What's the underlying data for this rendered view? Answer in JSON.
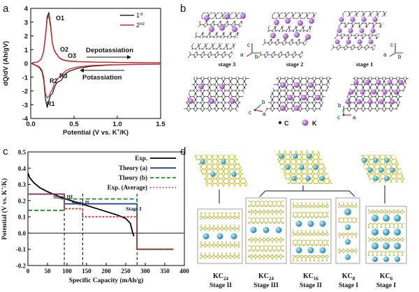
{
  "panels": {
    "a": "a",
    "b": "b",
    "c": "c",
    "d": "d"
  },
  "chart_data": [
    {
      "panel": "a",
      "type": "line",
      "xlabel": "Potential (V vs. K+/K)",
      "xlabel_parts": [
        "Potential (V vs. K",
        "+",
        "/K)"
      ],
      "ylabel": "dQ/dV (Ah/gV)",
      "xlim": [
        0.0,
        1.5
      ],
      "ylim": [
        -4,
        4
      ],
      "xticks": [
        0.0,
        0.5,
        1.0,
        1.5
      ],
      "xtick_labels": [
        "0.0",
        "0.5",
        "1.0",
        "1.5"
      ],
      "yticks": [
        -4,
        -3,
        -2,
        -1,
        0,
        1,
        2,
        3,
        4
      ],
      "ytick_labels": [
        "-4",
        "-3",
        "-2",
        "-1",
        "0",
        "1",
        "2",
        "3",
        "4"
      ],
      "legend": [
        {
          "label": "1",
          "sup": "st",
          "color": "#222222"
        },
        {
          "label": "2",
          "sup": "nd",
          "color": "#d62728"
        }
      ],
      "annotations": [
        "O1",
        "O2",
        "O3",
        "R1",
        "R2",
        "R3",
        "Depotassiation",
        "Potassiation"
      ],
      "series": [
        {
          "name": "1st",
          "color": "#222222",
          "x": [
            0.02,
            0.08,
            0.12,
            0.15,
            0.17,
            0.19,
            0.21,
            0.23,
            0.25,
            0.27,
            0.29,
            0.31,
            0.33,
            0.36,
            0.4,
            0.45,
            0.55,
            0.7,
            0.9,
            1.1,
            1.3,
            1.5
          ],
          "y": [
            0.05,
            0.1,
            0.3,
            0.9,
            2.0,
            3.4,
            3.7,
            2.8,
            1.5,
            1.0,
            0.75,
            0.6,
            0.42,
            0.3,
            0.22,
            0.17,
            0.13,
            0.1,
            0.08,
            0.06,
            0.05,
            0.05
          ]
        },
        {
          "name": "1st-potassiation",
          "color": "#222222",
          "x": [
            1.5,
            1.3,
            1.1,
            0.9,
            0.7,
            0.55,
            0.45,
            0.4,
            0.35,
            0.33,
            0.3,
            0.27,
            0.25,
            0.23,
            0.21,
            0.19,
            0.17,
            0.15,
            0.13,
            0.1,
            0.06,
            0.02
          ],
          "y": [
            -0.05,
            -0.06,
            -0.08,
            -0.12,
            -0.2,
            -0.35,
            -0.55,
            -0.75,
            -1.25,
            -1.3,
            -1.4,
            -1.8,
            -2.2,
            -2.3,
            -2.7,
            -3.2,
            -2.6,
            -1.2,
            -0.6,
            -0.3,
            -0.15,
            -0.05
          ]
        },
        {
          "name": "2nd",
          "color": "#d62728",
          "x": [
            0.02,
            0.08,
            0.12,
            0.15,
            0.17,
            0.19,
            0.21,
            0.23,
            0.25,
            0.27,
            0.29,
            0.31,
            0.33,
            0.36,
            0.4,
            0.45,
            0.55,
            0.7,
            0.9,
            1.1,
            1.3,
            1.5
          ],
          "y": [
            0.05,
            0.1,
            0.3,
            0.85,
            1.9,
            3.2,
            3.5,
            2.6,
            1.45,
            0.95,
            0.72,
            0.58,
            0.4,
            0.28,
            0.2,
            0.15,
            0.12,
            0.1,
            0.08,
            0.06,
            0.05,
            0.05
          ]
        },
        {
          "name": "2nd-potassiation",
          "color": "#d62728",
          "x": [
            1.5,
            1.3,
            1.1,
            0.9,
            0.7,
            0.55,
            0.45,
            0.4,
            0.35,
            0.33,
            0.3,
            0.27,
            0.25,
            0.23,
            0.21,
            0.19,
            0.17,
            0.15,
            0.13,
            0.1,
            0.06,
            0.02
          ],
          "y": [
            -0.05,
            -0.06,
            -0.08,
            -0.1,
            -0.15,
            -0.25,
            -0.4,
            -0.55,
            -0.9,
            -1.0,
            -1.2,
            -1.5,
            -1.9,
            -2.1,
            -2.4,
            -2.5,
            -2.2,
            -1.0,
            -0.5,
            -0.25,
            -0.12,
            -0.05
          ]
        }
      ]
    },
    {
      "panel": "c",
      "type": "line",
      "xlabel": "Specific Capacity (mAh/g)",
      "ylabel": "Potential (V vs. K+/K)",
      "ylabel_parts": [
        "Potential (V vs. K",
        "+",
        "/K)"
      ],
      "xlim": [
        0,
        400
      ],
      "ylim": [
        -0.2,
        0.5
      ],
      "xticks": [
        0,
        50,
        100,
        150,
        200,
        250,
        300,
        350,
        400
      ],
      "xtick_labels": [
        "0",
        "50",
        "100",
        "150",
        "200",
        "250",
        "300",
        "350",
        "400"
      ],
      "yticks": [
        -0.2,
        -0.1,
        0.0,
        0.1,
        0.2,
        0.3,
        0.4,
        0.5
      ],
      "ytick_labels": [
        "-0.2",
        "-0.1",
        "0.0",
        "0.1",
        "0.2",
        "0.3",
        "0.4",
        "0.5"
      ],
      "stage_lines": [
        {
          "x": 93,
          "label": "Stage III"
        },
        {
          "x": 140,
          "label": "Stage II"
        },
        {
          "x": 279,
          "label": "Stage I"
        }
      ],
      "series": [
        {
          "name": "Exp.",
          "color": "#000000",
          "style": "solid",
          "x": [
            0,
            5,
            15,
            30,
            50,
            70,
            90,
            110,
            130,
            150,
            170,
            190,
            210,
            230,
            250,
            262,
            268,
            271
          ],
          "y": [
            0.37,
            0.34,
            0.31,
            0.28,
            0.255,
            0.235,
            0.215,
            0.2,
            0.185,
            0.17,
            0.155,
            0.14,
            0.125,
            0.11,
            0.09,
            0.06,
            0.0,
            -0.02
          ]
        },
        {
          "name": "Theory (a)",
          "color": "#1f3a93",
          "style": "solid",
          "x": [
            0,
            93,
            93,
            279,
            279,
            372
          ],
          "y": [
            0.24,
            0.24,
            0.18,
            0.18,
            -0.1,
            -0.1
          ]
        },
        {
          "name": "Theory (b)",
          "color": "#1a8a2a",
          "style": "dashed",
          "x": [
            0,
            93,
            93,
            279,
            279,
            372
          ],
          "y": [
            0.14,
            0.14,
            0.21,
            0.21,
            -0.1,
            -0.1
          ]
        },
        {
          "name": "Exp. (Average)",
          "color": "#d62728",
          "style": "dotted",
          "x": [
            0,
            93,
            93,
            140,
            140,
            279,
            279,
            372
          ],
          "y": [
            0.24,
            0.24,
            0.15,
            0.15,
            0.1,
            0.1,
            -0.1,
            -0.1
          ]
        }
      ]
    }
  ],
  "panel_b": {
    "labels": [
      "stage 3",
      "stage 2",
      "stage 1"
    ],
    "axis_labels": {
      "a": "a",
      "b": "b",
      "c": "c"
    },
    "legend": [
      {
        "label": "C",
        "color": "#222222"
      },
      {
        "label": "K",
        "color": "#a455c6"
      }
    ]
  },
  "panel_d": {
    "labels": [
      {
        "formula": "KC",
        "sub": "24",
        "stage": "Stage II"
      },
      {
        "formula": "KC",
        "sub": "24",
        "stage": "Stage III"
      },
      {
        "formula": "KC",
        "sub": "16",
        "stage": "Stage II"
      },
      {
        "formula": "KC",
        "sub": "8",
        "stage": "Stage I"
      },
      {
        "formula": "KC",
        "sub": "6",
        "stage": "Stage I"
      }
    ],
    "colors": {
      "carbon": "#d9d43a",
      "potassium": "#39a9c9"
    }
  }
}
